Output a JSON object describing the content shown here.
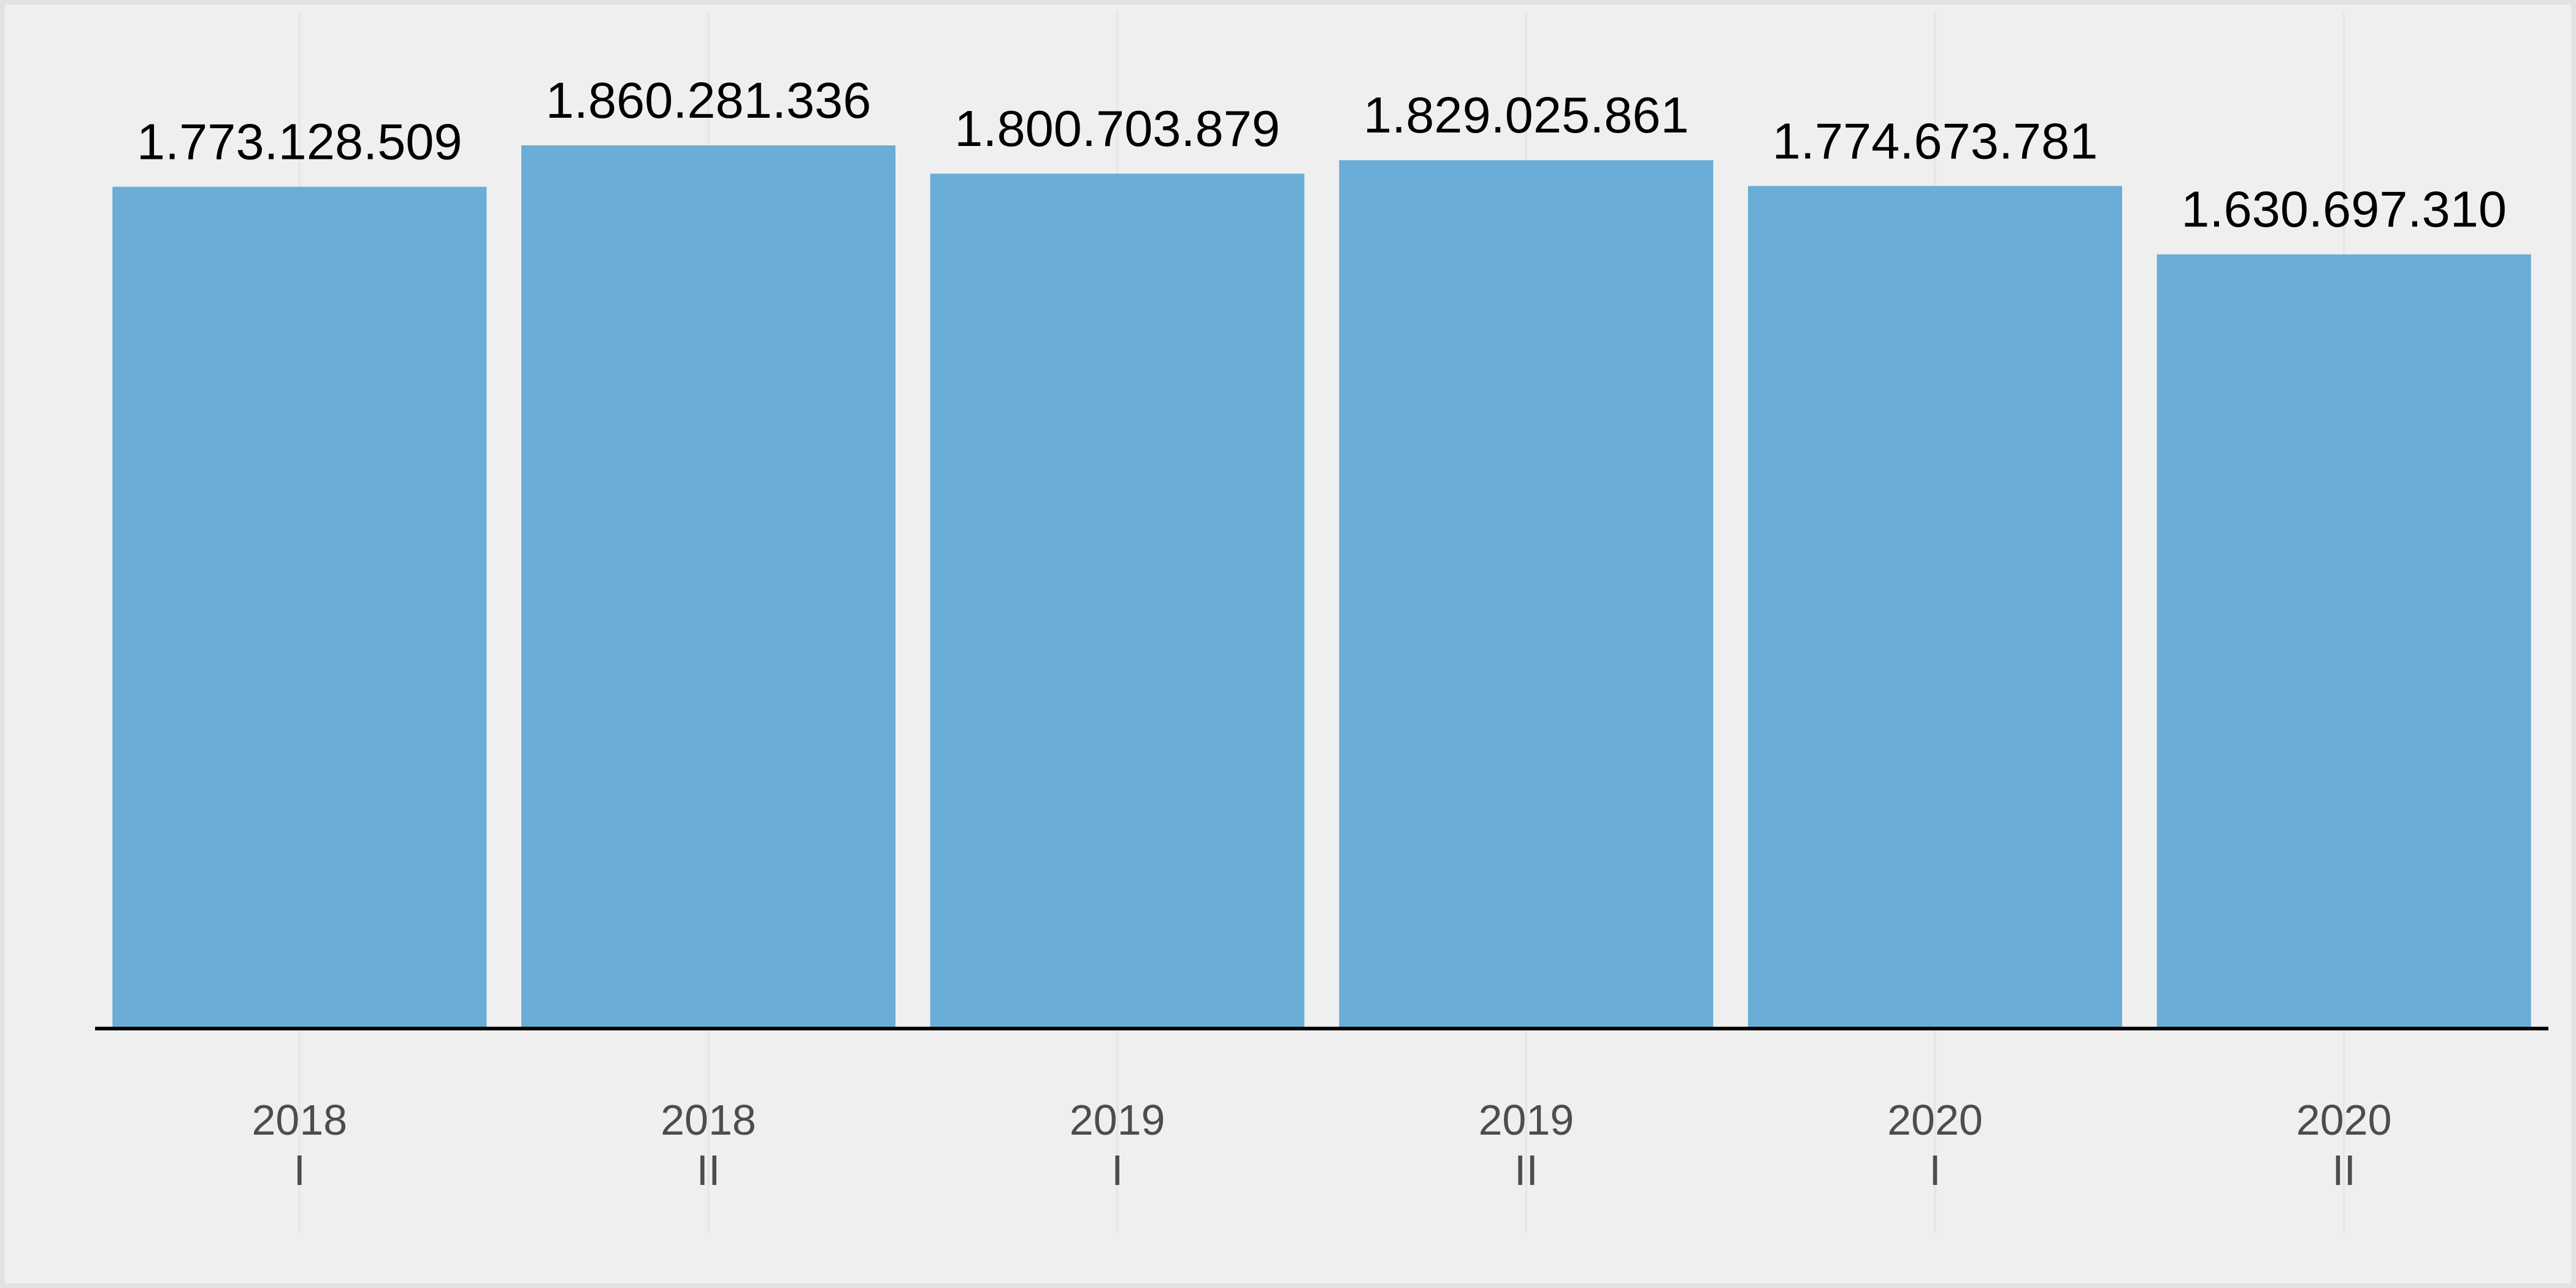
{
  "chart_data": {
    "type": "bar",
    "categories": [
      [
        "2018",
        "I"
      ],
      [
        "2018",
        "II"
      ],
      [
        "2019",
        "I"
      ],
      [
        "2019",
        "II"
      ],
      [
        "2020",
        "I"
      ],
      [
        "2020",
        "II"
      ]
    ],
    "values": [
      1773128509,
      1860281336,
      1800703879,
      1829025861,
      1774673781,
      1630697310
    ],
    "data_labels": [
      "1.773.128.509",
      "1.860.281.336",
      "1.800.703.879",
      "1.829.025.861",
      "1.774.673.781",
      "1.630.697.310"
    ],
    "title": "",
    "xlabel": "",
    "ylabel": "",
    "ylim": [
      0,
      1860281336
    ],
    "y_axis_shown": false,
    "grid": "vertical-minor-only",
    "legend": "none",
    "colors": {
      "bar": "#6aadd6",
      "panel_background": "#efefef",
      "gridline": "#e5e5e5",
      "baseline": "#000000",
      "value_text": "#000000",
      "tick_text": "#4d4d4d",
      "border": "#e2e2e2"
    }
  }
}
